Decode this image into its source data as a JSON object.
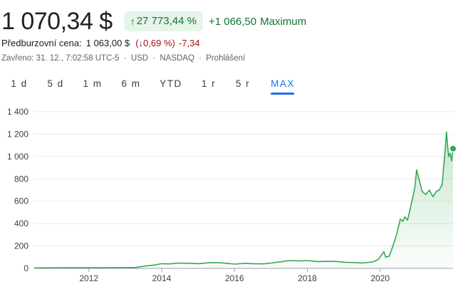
{
  "header": {
    "price": "1 070,34 $",
    "change_pct": "27 773,44 %",
    "change_abs": "+1 066,50",
    "period_label": "Maximum",
    "premarket_label": "Předburzovní cena:",
    "premarket_price": "1 063,00 $",
    "premarket_pct": "0,69 %",
    "premarket_abs": "-7,34",
    "meta_closed": "Zavřeno: 31. 12., 7:02:58 UTC-5",
    "meta_currency": "USD",
    "meta_exchange": "NASDAQ",
    "meta_disclaimer": "Prohlášení",
    "meta_separator": "·"
  },
  "tabs": [
    {
      "label": "1 d",
      "active": false
    },
    {
      "label": "5 d",
      "active": false
    },
    {
      "label": "1 m",
      "active": false
    },
    {
      "label": "6 m",
      "active": false
    },
    {
      "label": "YTD",
      "active": false
    },
    {
      "label": "1 r",
      "active": false
    },
    {
      "label": "5 r",
      "active": false
    },
    {
      "label": "MAX",
      "active": true
    }
  ],
  "colors": {
    "positive": "#137333",
    "negative": "#a50e0e",
    "accent": "#1a73e8",
    "line": "#34a853",
    "grid": "#e8eaed"
  },
  "icons": {
    "up": "arrow-up-icon",
    "down": "arrow-down-icon"
  },
  "chart_data": {
    "type": "area",
    "title": "",
    "xlabel": "",
    "ylabel": "",
    "y_ticks": [
      0,
      200,
      400,
      600,
      800,
      1000,
      1200,
      1400
    ],
    "y_tick_labels": [
      "0",
      "200",
      "400",
      "600",
      "800",
      "1 000",
      "1 200",
      "1 400"
    ],
    "x_ticks": [
      2012,
      2014,
      2016,
      2018,
      2020
    ],
    "x_tick_labels": [
      "2012",
      "2014",
      "2016",
      "2018",
      "2020"
    ],
    "ylim": [
      0,
      1400
    ],
    "xlim": [
      2010.5,
      2022.0
    ],
    "grid": true,
    "series": [
      {
        "x": [
          2010.5,
          2011.0,
          2011.5,
          2012.0,
          2012.5,
          2013.0,
          2013.3,
          2013.5,
          2013.8,
          2014.0,
          2014.2,
          2014.5,
          2014.8,
          2015.0,
          2015.3,
          2015.5,
          2015.8,
          2016.0,
          2016.3,
          2016.5,
          2016.8,
          2017.0,
          2017.3,
          2017.5,
          2017.8,
          2018.0,
          2018.3,
          2018.5,
          2018.8,
          2019.0,
          2019.3,
          2019.5,
          2019.8,
          2019.95,
          2020.1,
          2020.15,
          2020.25,
          2020.35,
          2020.45,
          2020.55,
          2020.62,
          2020.68,
          2020.75,
          2020.85,
          2020.95,
          2021.0,
          2021.08,
          2021.15,
          2021.25,
          2021.35,
          2021.45,
          2021.55,
          2021.62,
          2021.7,
          2021.78,
          2021.82,
          2021.85,
          2021.88,
          2021.92,
          2021.96,
          2022.0
        ],
        "values": [
          4,
          5,
          6,
          6,
          6,
          7,
          8,
          20,
          30,
          42,
          40,
          48,
          45,
          42,
          50,
          52,
          45,
          38,
          45,
          42,
          40,
          48,
          60,
          70,
          66,
          70,
          60,
          63,
          62,
          55,
          52,
          48,
          58,
          80,
          150,
          100,
          110,
          200,
          300,
          440,
          420,
          460,
          430,
          570,
          720,
          880,
          780,
          690,
          660,
          700,
          640,
          690,
          700,
          750,
          1050,
          1220,
          1100,
          1000,
          1030,
          960,
          1070
        ]
      }
    ]
  }
}
